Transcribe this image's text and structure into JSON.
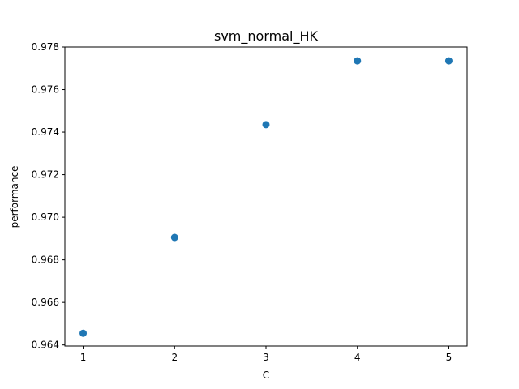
{
  "chart_data": {
    "type": "scatter",
    "title": "svm_normal_HK",
    "xlabel": "C",
    "ylabel": "performance",
    "x": [
      1,
      2,
      3,
      4,
      5
    ],
    "y": [
      0.96455,
      0.96905,
      0.97435,
      0.97735,
      0.97735
    ],
    "xticks": [
      "1",
      "2",
      "3",
      "4",
      "5"
    ],
    "yticks": [
      "0.964",
      "0.966",
      "0.968",
      "0.970",
      "0.972",
      "0.974",
      "0.976",
      "0.978"
    ],
    "xlim": [
      0.8,
      5.2
    ],
    "ylim": [
      0.96395,
      0.978
    ],
    "grid": false,
    "marker_color": "#1f77b4"
  }
}
